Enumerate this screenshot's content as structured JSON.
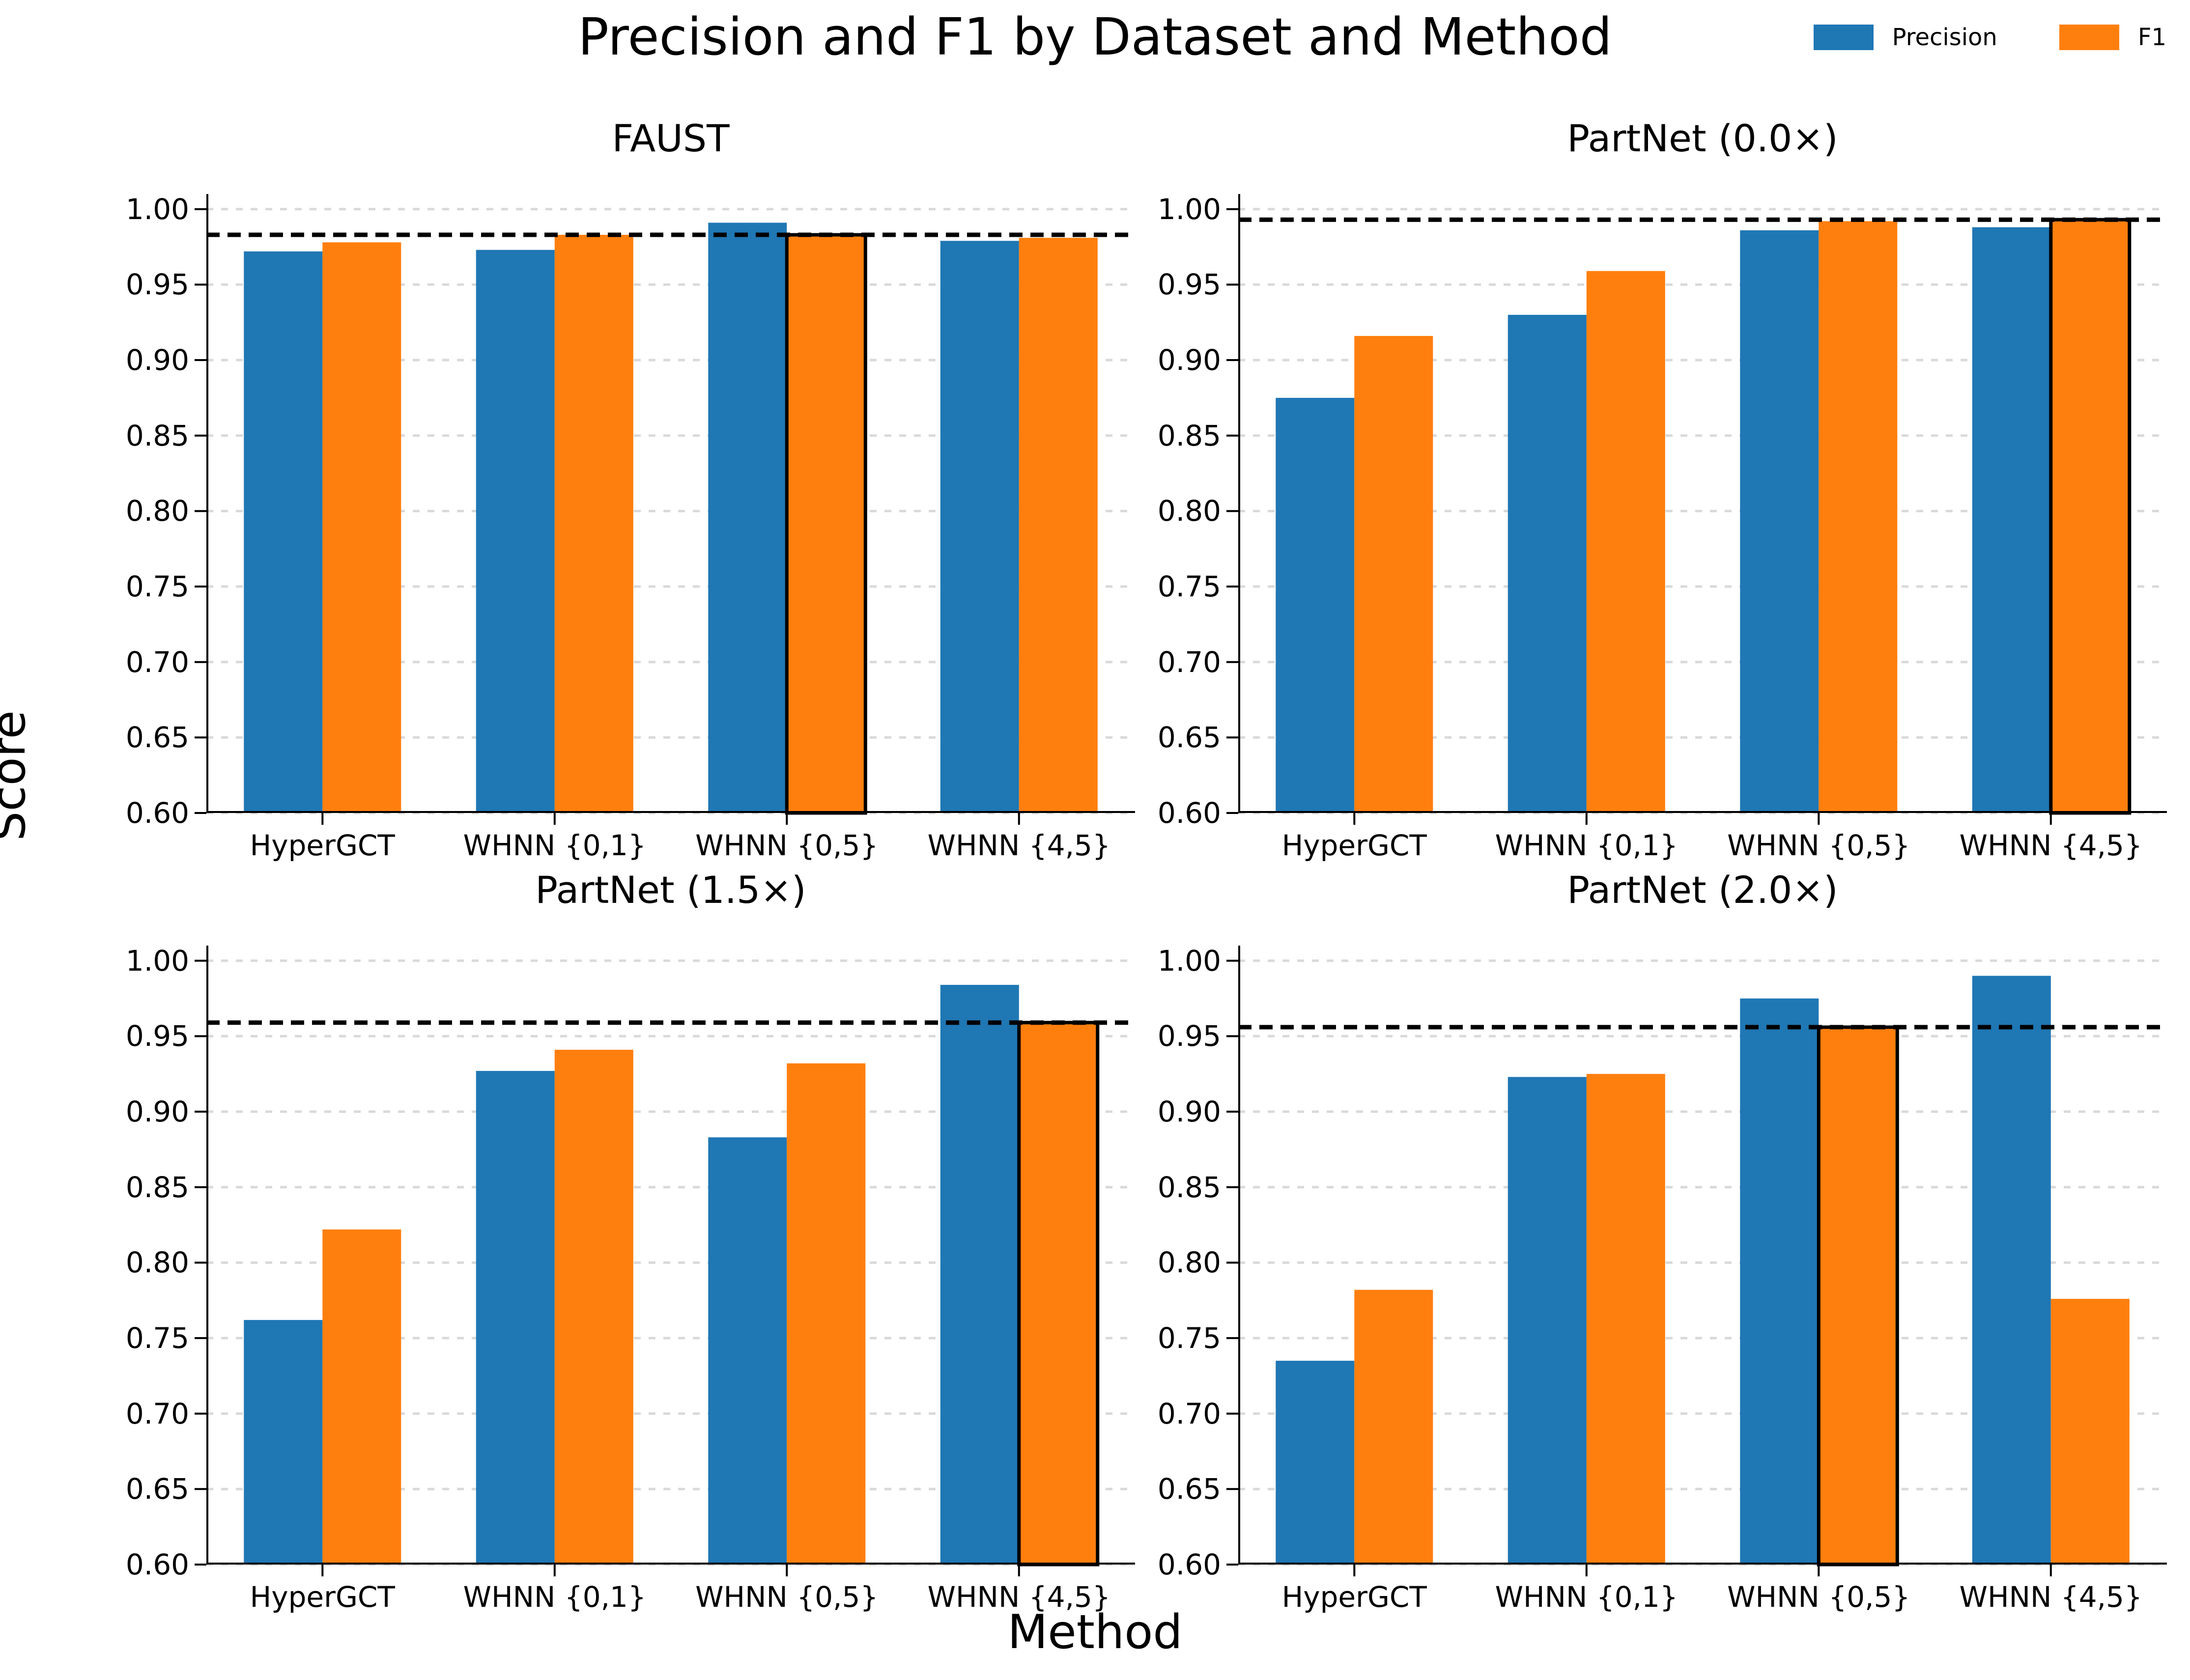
{
  "figure": {
    "title": "Precision and F1 by Dataset and Method",
    "xlabel": "Method",
    "ylabel": "Score",
    "legend": [
      {
        "label": "Precision",
        "color": "#1f77b4"
      },
      {
        "label": "F1",
        "color": "#ff7f0e"
      }
    ]
  },
  "style": {
    "precision_color": "#1f77b4",
    "f1_color": "#ff7f0e",
    "gridline_color": "#d9d9d9",
    "reference_line_color": "#000000",
    "highlight_edge_color": "#000000",
    "spine_color": "#000000"
  },
  "chart_data": [
    {
      "type": "bar",
      "title": "FAUST",
      "categories": [
        "HyperGCT",
        "WHNN {0,1}",
        "WHNN {0,5}",
        "WHNN {4,5}"
      ],
      "series": [
        {
          "name": "Precision",
          "values": [
            0.972,
            0.973,
            0.991,
            0.979
          ]
        },
        {
          "name": "F1",
          "values": [
            0.978,
            0.983,
            0.983,
            0.981
          ]
        }
      ],
      "reference_line": 0.983,
      "highlight": {
        "series": "F1",
        "category_index": 2
      },
      "ylim": [
        0.6,
        1.01
      ],
      "yticks": [
        0.6,
        0.65,
        0.7,
        0.75,
        0.8,
        0.85,
        0.9,
        0.95,
        1.0
      ],
      "grid": "horizontal-dashed",
      "legend_position": "figure-top-right"
    },
    {
      "type": "bar",
      "title": "PartNet (0.0×)",
      "categories": [
        "HyperGCT",
        "WHNN {0,1}",
        "WHNN {0,5}",
        "WHNN {4,5}"
      ],
      "series": [
        {
          "name": "Precision",
          "values": [
            0.875,
            0.93,
            0.986,
            0.988
          ]
        },
        {
          "name": "F1",
          "values": [
            0.916,
            0.959,
            0.992,
            0.993
          ]
        }
      ],
      "reference_line": 0.993,
      "highlight": {
        "series": "F1",
        "category_index": 3
      },
      "ylim": [
        0.6,
        1.01
      ],
      "yticks": [
        0.6,
        0.65,
        0.7,
        0.75,
        0.8,
        0.85,
        0.9,
        0.95,
        1.0
      ],
      "grid": "horizontal-dashed",
      "legend_position": "figure-top-right"
    },
    {
      "type": "bar",
      "title": "PartNet (1.5×)",
      "categories": [
        "HyperGCT",
        "WHNN {0,1}",
        "WHNN {0,5}",
        "WHNN {4,5}"
      ],
      "series": [
        {
          "name": "Precision",
          "values": [
            0.762,
            0.927,
            0.883,
            0.984
          ]
        },
        {
          "name": "F1",
          "values": [
            0.822,
            0.941,
            0.932,
            0.959
          ]
        }
      ],
      "reference_line": 0.959,
      "highlight": {
        "series": "F1",
        "category_index": 3
      },
      "ylim": [
        0.6,
        1.01
      ],
      "yticks": [
        0.6,
        0.65,
        0.7,
        0.75,
        0.8,
        0.85,
        0.9,
        0.95,
        1.0
      ],
      "grid": "horizontal-dashed",
      "legend_position": "figure-top-right"
    },
    {
      "type": "bar",
      "title": "PartNet (2.0×)",
      "categories": [
        "HyperGCT",
        "WHNN {0,1}",
        "WHNN {0,5}",
        "WHNN {4,5}"
      ],
      "series": [
        {
          "name": "Precision",
          "values": [
            0.735,
            0.923,
            0.975,
            0.99
          ]
        },
        {
          "name": "F1",
          "values": [
            0.782,
            0.925,
            0.956,
            0.776
          ]
        }
      ],
      "reference_line": 0.956,
      "highlight": {
        "series": "F1",
        "category_index": 2
      },
      "ylim": [
        0.6,
        1.01
      ],
      "yticks": [
        0.6,
        0.65,
        0.7,
        0.75,
        0.8,
        0.85,
        0.9,
        0.95,
        1.0
      ],
      "grid": "horizontal-dashed",
      "legend_position": "figure-top-right"
    }
  ],
  "layout_hints": {
    "rows": 2,
    "cols": 2,
    "bars_per_group": 2,
    "highlight_meaning": "best F1 method, outlined in black; dashed black line marks its F1 score"
  }
}
